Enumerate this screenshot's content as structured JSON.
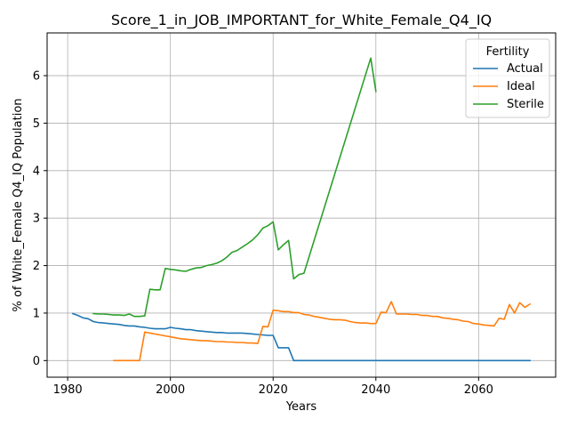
{
  "chart_data": {
    "type": "line",
    "title": "Score_1_in_JOB_IMPORTANT_for_White_Female_Q4_IQ",
    "xlabel": "Years",
    "ylabel": "% of White_Female Q4_IQ Population",
    "xlim": [
      1976,
      2075
    ],
    "ylim": [
      -0.35,
      6.9
    ],
    "xticks": [
      1980,
      2000,
      2020,
      2040,
      2060
    ],
    "yticks": [
      0,
      1,
      2,
      3,
      4,
      5,
      6
    ],
    "grid": true,
    "legend": {
      "title": "Fertility",
      "placement": "top-right"
    },
    "series": [
      {
        "name": "Actual",
        "color": "#1f77b4",
        "x": [
          1981,
          1982,
          1983,
          1984,
          1985,
          1986,
          1987,
          1988,
          1989,
          1990,
          1991,
          1992,
          1993,
          1994,
          1995,
          1996,
          1997,
          1998,
          1999,
          2000,
          2001,
          2002,
          2003,
          2004,
          2005,
          2006,
          2007,
          2008,
          2009,
          2010,
          2011,
          2012,
          2013,
          2014,
          2015,
          2016,
          2017,
          2018,
          2019,
          2020,
          2021,
          2022,
          2023,
          2024,
          2025,
          2030,
          2040,
          2050,
          2060,
          2070
        ],
        "y": [
          0.99,
          0.95,
          0.9,
          0.88,
          0.82,
          0.8,
          0.79,
          0.78,
          0.77,
          0.76,
          0.74,
          0.73,
          0.73,
          0.71,
          0.7,
          0.68,
          0.67,
          0.67,
          0.67,
          0.7,
          0.68,
          0.67,
          0.65,
          0.65,
          0.63,
          0.62,
          0.61,
          0.6,
          0.59,
          0.59,
          0.58,
          0.58,
          0.58,
          0.58,
          0.57,
          0.56,
          0.55,
          0.54,
          0.53,
          0.53,
          0.27,
          0.27,
          0.27,
          0.0,
          0.0,
          0.0,
          0.0,
          0.0,
          0.0,
          0.0
        ]
      },
      {
        "name": "Ideal",
        "color": "#ff7f0e",
        "x": [
          1989,
          1990,
          1991,
          1992,
          1993,
          1994,
          1995,
          1996,
          1997,
          1998,
          1999,
          2000,
          2001,
          2002,
          2003,
          2004,
          2005,
          2006,
          2007,
          2008,
          2009,
          2010,
          2011,
          2012,
          2013,
          2014,
          2015,
          2016,
          2017,
          2018,
          2019,
          2020,
          2021,
          2022,
          2023,
          2024,
          2025,
          2026,
          2027,
          2028,
          2029,
          2030,
          2031,
          2032,
          2033,
          2034,
          2035,
          2036,
          2037,
          2038,
          2039,
          2040,
          2041,
          2042,
          2043,
          2044,
          2045,
          2046,
          2047,
          2048,
          2049,
          2050,
          2051,
          2052,
          2053,
          2054,
          2055,
          2056,
          2057,
          2058,
          2059,
          2060,
          2061,
          2062,
          2063,
          2064,
          2065,
          2066,
          2067,
          2068,
          2069,
          2070
        ],
        "y": [
          0.0,
          0.0,
          0.0,
          0.0,
          0.0,
          0.0,
          0.6,
          0.58,
          0.56,
          0.54,
          0.52,
          0.5,
          0.48,
          0.46,
          0.45,
          0.44,
          0.43,
          0.42,
          0.42,
          0.41,
          0.4,
          0.4,
          0.39,
          0.39,
          0.38,
          0.38,
          0.37,
          0.37,
          0.36,
          0.72,
          0.71,
          1.06,
          1.05,
          1.03,
          1.03,
          1.01,
          1.01,
          0.97,
          0.96,
          0.93,
          0.91,
          0.89,
          0.87,
          0.86,
          0.86,
          0.85,
          0.82,
          0.8,
          0.79,
          0.79,
          0.78,
          0.78,
          1.02,
          1.01,
          1.24,
          0.98,
          0.98,
          0.98,
          0.97,
          0.97,
          0.95,
          0.95,
          0.93,
          0.93,
          0.9,
          0.89,
          0.87,
          0.86,
          0.83,
          0.82,
          0.78,
          0.77,
          0.75,
          0.74,
          0.73,
          0.89,
          0.87,
          1.18,
          1.0,
          1.22,
          1.12,
          1.19
        ]
      },
      {
        "name": "Sterile",
        "color": "#2ca02c",
        "x": [
          1985,
          1986,
          1987,
          1988,
          1989,
          1990,
          1991,
          1992,
          1993,
          1994,
          1995,
          1996,
          1997,
          1998,
          1999,
          2000,
          2001,
          2002,
          2003,
          2004,
          2005,
          2006,
          2007,
          2008,
          2009,
          2010,
          2011,
          2012,
          2013,
          2014,
          2015,
          2016,
          2017,
          2018,
          2019,
          2020,
          2021,
          2022,
          2023,
          2024,
          2025,
          2026,
          2039,
          2040
        ],
        "y": [
          0.99,
          0.98,
          0.98,
          0.97,
          0.96,
          0.96,
          0.95,
          0.98,
          0.93,
          0.93,
          0.94,
          1.5,
          1.49,
          1.49,
          1.94,
          1.92,
          1.91,
          1.89,
          1.88,
          1.92,
          1.95,
          1.96,
          2.0,
          2.02,
          2.05,
          2.1,
          2.18,
          2.28,
          2.32,
          2.39,
          2.46,
          2.54,
          2.65,
          2.79,
          2.84,
          2.92,
          2.33,
          2.44,
          2.53,
          1.72,
          1.81,
          1.84,
          6.37,
          5.67
        ]
      }
    ]
  }
}
